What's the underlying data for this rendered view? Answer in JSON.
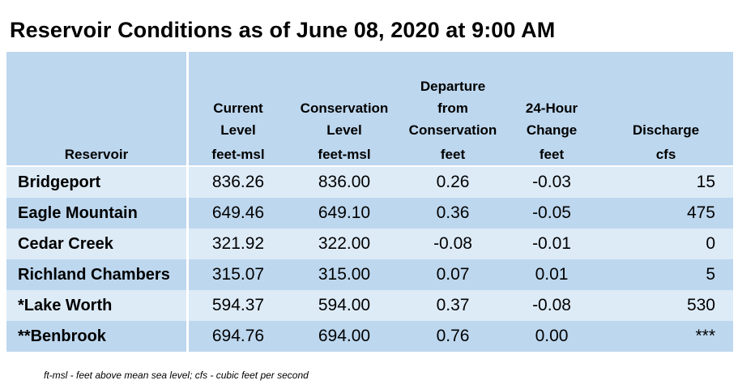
{
  "title": "Reservoir Conditions as of June 08, 2020 at 9:00 AM",
  "columns": [
    {
      "header_lines": [
        "",
        ""
      ],
      "label": "Reservoir",
      "unit": ""
    },
    {
      "header_lines": [
        "Current",
        "Level"
      ],
      "unit": "feet-msl"
    },
    {
      "header_lines": [
        "Conservation",
        "Level"
      ],
      "unit": "feet-msl"
    },
    {
      "header_lines": [
        "Departure",
        "from",
        "Conservation"
      ],
      "unit": "feet"
    },
    {
      "header_lines": [
        "24-Hour",
        "Change"
      ],
      "unit": "feet"
    },
    {
      "header_lines": [
        "Discharge"
      ],
      "unit": "cfs"
    }
  ],
  "rows": [
    {
      "name": "Bridgeport",
      "current": "836.26",
      "conservation": "836.00",
      "departure": "0.26",
      "change": "-0.03",
      "discharge": "15"
    },
    {
      "name": "Eagle Mountain",
      "current": "649.46",
      "conservation": "649.10",
      "departure": "0.36",
      "change": "-0.05",
      "discharge": "475"
    },
    {
      "name": "Cedar Creek",
      "current": "321.92",
      "conservation": "322.00",
      "departure": "-0.08",
      "change": "-0.01",
      "discharge": "0"
    },
    {
      "name": "Richland Chambers",
      "current": "315.07",
      "conservation": "315.00",
      "departure": "0.07",
      "change": "0.01",
      "discharge": "5"
    },
    {
      "name": "*Lake Worth",
      "current": "594.37",
      "conservation": "594.00",
      "departure": "0.37",
      "change": "-0.08",
      "discharge": "530"
    },
    {
      "name": "**Benbrook",
      "current": "694.76",
      "conservation": "694.00",
      "departure": "0.76",
      "change": "0.00",
      "discharge": "***"
    }
  ],
  "footnote": "ft-msl - feet above mean sea level; cfs - cubic feet per second",
  "colors": {
    "header_bg": "#bdd7ee",
    "row_light": "#ddebf7",
    "row_dark": "#bdd7ee"
  }
}
